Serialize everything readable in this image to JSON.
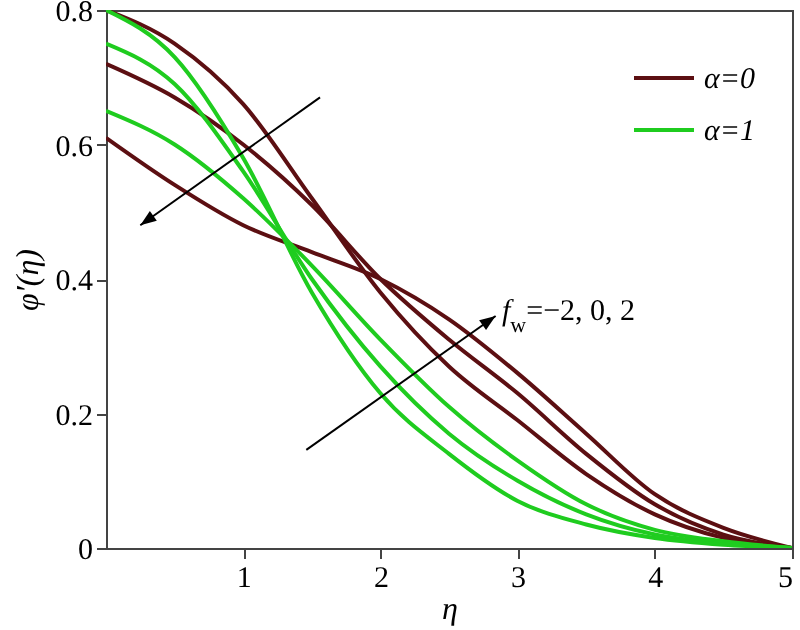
{
  "chart_data": {
    "type": "line",
    "x": [
      0,
      0.5,
      1,
      1.5,
      2,
      2.5,
      3,
      3.5,
      4,
      4.5,
      5
    ],
    "series": [
      {
        "name": "α=0",
        "color": "#5c0f12",
        "values": [
          0.61,
          0.54,
          0.48,
          0.44,
          0.4,
          0.34,
          0.26,
          0.17,
          0.08,
          0.03,
          0
        ]
      },
      {
        "color": "#5c0f12",
        "values": [
          0.72,
          0.67,
          0.6,
          0.51,
          0.4,
          0.31,
          0.23,
          0.14,
          0.065,
          0.02,
          0
        ]
      },
      {
        "color": "#5c0f12",
        "values": [
          0.8,
          0.75,
          0.66,
          0.52,
          0.38,
          0.27,
          0.19,
          0.11,
          0.05,
          0.015,
          0
        ]
      },
      {
        "name": "α=1",
        "color": "#1fcc1f",
        "values": [
          0.65,
          0.6,
          0.52,
          0.42,
          0.31,
          0.21,
          0.13,
          0.065,
          0.027,
          0.01,
          0
        ]
      },
      {
        "color": "#1fcc1f",
        "values": [
          0.75,
          0.69,
          0.56,
          0.4,
          0.27,
          0.17,
          0.1,
          0.05,
          0.02,
          0.007,
          0
        ]
      },
      {
        "color": "#1fcc1f",
        "values": [
          0.8,
          0.73,
          0.58,
          0.38,
          0.23,
          0.14,
          0.07,
          0.035,
          0.015,
          0.005,
          0
        ]
      }
    ],
    "xlabel": "η",
    "ylabel": "φ′(η)",
    "xlim": [
      0,
      5
    ],
    "xticks": [
      1,
      2,
      3,
      4,
      5
    ],
    "ylim": [
      0,
      0.8
    ],
    "yticks": [
      0,
      0.2,
      0.4,
      0.6,
      0.8
    ],
    "annotations": [
      "f$_{w}$=−2, 0, 2"
    ],
    "legend": "top right",
    "grid": false,
    "line_style": "solid"
  }
}
